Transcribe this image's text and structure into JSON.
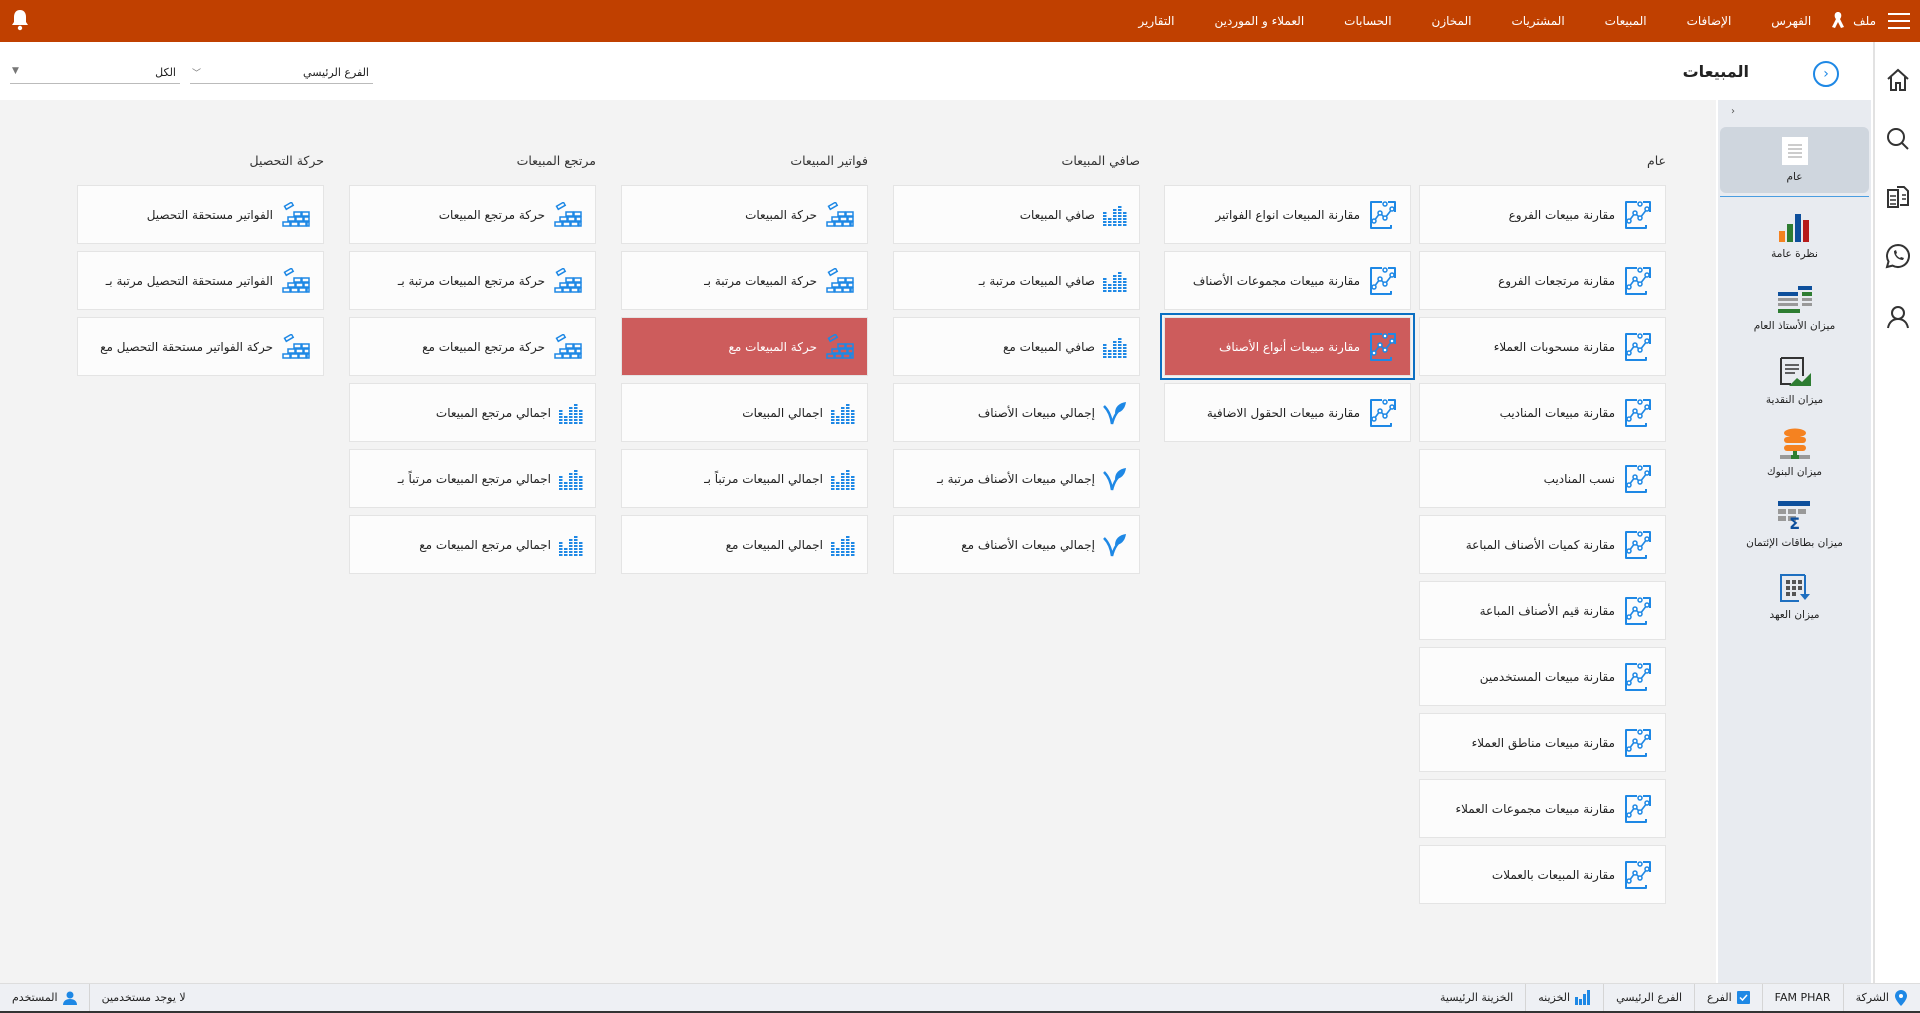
{
  "topbar": {
    "menu": [
      "ملف",
      "الفهرس",
      "الإضافات",
      "المبيعات",
      "المشتريات",
      "المخازن",
      "الحسابات",
      "العملاء و الموردين",
      "التقارير"
    ],
    "color": "#c04000"
  },
  "header": {
    "title": "المبيعات",
    "branch_select": "الفرع الرئيسي",
    "all_select": "الكل"
  },
  "columns": [
    {
      "heading": "عام",
      "icon": "line-chart-icon",
      "items": [
        "مقارنة مبيعات الفروع",
        "مقارنة مرتجعات الفروع",
        "مقارنة مسحوبات العملاء",
        "مقارنة مبيعات المناديب",
        "نسب المناديب",
        "مقارنة كميات الأصناف المباعة",
        "مقارنة قيم الأصناف المباعة",
        "مقارنة مبيعات المستخدمين",
        "مقارنة مبيعات مناطق العملاء",
        "مقارنة مبيعات مجموعات العملاء",
        "مقارنة المبيعات بالعملات"
      ]
    },
    {
      "heading": "",
      "icon": "line-chart-icon",
      "items": [
        "مقارنة المبيعات انواع الفواتير",
        "مقارنة مبيعات مجموعات الأصناف",
        "مقارنة مبيعات أنواع الأصناف",
        "مقارنة مبيعات الحقول الاضافية"
      ],
      "selected_index": 2
    },
    {
      "heading": "صافي المبيعات",
      "items": [
        {
          "label": "صافي المبيعات",
          "icon": "bars-icon"
        },
        {
          "label": "صافي المبيعات مرتبة بـ",
          "icon": "bars-icon"
        },
        {
          "label": "صافي المبيعات مع",
          "icon": "bars-icon"
        },
        {
          "label": "إجمالي مبيعات الأصناف",
          "icon": "leaf-icon"
        },
        {
          "label": "إجمالي مبيعات الأصناف مرتبة بـ",
          "icon": "leaf-icon"
        },
        {
          "label": "إجمالي مبيعات الأصناف مع",
          "icon": "leaf-icon"
        }
      ]
    },
    {
      "heading": "فواتير المبيعات",
      "items": [
        {
          "label": "حركة المبيعات",
          "icon": "bricks-icon"
        },
        {
          "label": "حركة المبيعات مرتبة بـ",
          "icon": "bricks-icon"
        },
        {
          "label": "حركة المبيعات مع",
          "icon": "bricks-icon"
        },
        {
          "label": "اجمالي المبيعات",
          "icon": "bars-icon"
        },
        {
          "label": "اجمالي المبيعات مرتباً بـ",
          "icon": "bars-icon"
        },
        {
          "label": "اجمالي المبيعات مع",
          "icon": "bars-icon"
        }
      ],
      "active_index": 2
    },
    {
      "heading": "مرتجع المبيعات",
      "items": [
        {
          "label": "حركة مرتجع المبيعات",
          "icon": "bricks-icon"
        },
        {
          "label": "حركة مرتجع المبيعات مرتبة بـ",
          "icon": "bricks-icon"
        },
        {
          "label": "حركة مرتجع المبيعات مع",
          "icon": "bricks-icon"
        },
        {
          "label": "اجمالي مرتجع المبيعات",
          "icon": "bars-icon"
        },
        {
          "label": "اجمالي مرتجع المبيعات مرتباً بـ",
          "icon": "bars-icon"
        },
        {
          "label": "اجمالي مرتجع المبيعات مع",
          "icon": "bars-icon"
        }
      ]
    },
    {
      "heading": "حركة التحصيل",
      "items": [
        {
          "label": "الفواتير مستحقة التحصيل",
          "icon": "bricks-icon"
        },
        {
          "label": "الفواتير مستحقة التحصيل مرتبة بـ",
          "icon": "bricks-icon"
        },
        {
          "label": "حركة الفواتير مستحقة التحصيل مع",
          "icon": "bricks-icon"
        }
      ]
    }
  ],
  "sidepanel": {
    "items": [
      "عام",
      "نظرة عامة",
      "ميزان الأستاذ العام",
      "ميزان النقدية",
      "ميزان البنوك",
      "ميزان بطاقات الإئتمان",
      "ميزان العهد"
    ],
    "selected_index": 0
  },
  "statusbar": {
    "company_label": "الشركة",
    "company_value": "FAM PHAR",
    "branch_label": "الفرع",
    "branch_value": "الفرع الرئيسي",
    "safe_label": "الخزينه",
    "safe_value": "الخزينة الرئيسية",
    "user_label": "المستخدم",
    "user_value": "لا يوجد مستخدمين"
  },
  "colors": {
    "accent": "#1e88e5",
    "active_card": "#cd5c5c",
    "selected_outline": "#0a6fc2"
  }
}
